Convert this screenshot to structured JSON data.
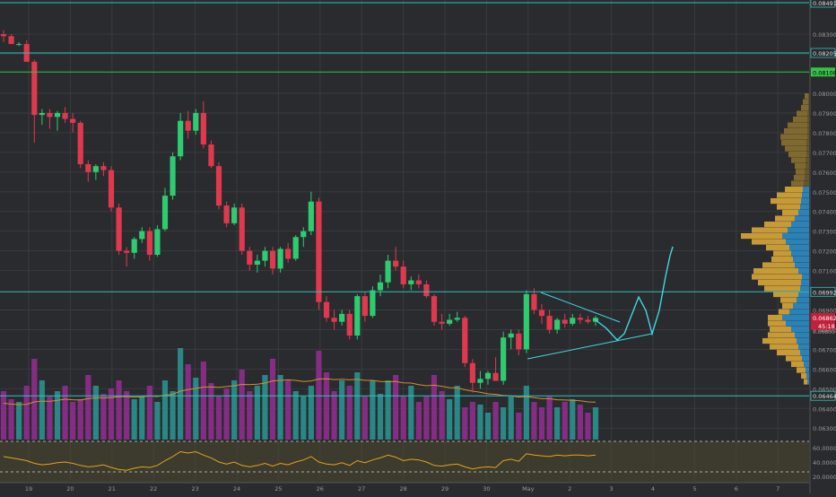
{
  "colors": {
    "background": "#2a2b2e",
    "grid": "#3a3b3f",
    "up": "#2ecc71",
    "down": "#e0394f",
    "line": "#30c0bd",
    "drawing": "#3fd8e8",
    "vol_up": "#2a8c8a",
    "vol_down": "#8a2d8a",
    "vol_ma": "#d4902a",
    "rsi": "#e8a21a",
    "vp_up": "#2b8cc6",
    "vp_down": "#d8a63a",
    "rsi_band": "#4a4830",
    "green_level": "#35c24a",
    "red_level": "#c2203a"
  },
  "chart_data": {
    "type": "candlestick",
    "price_axis": {
      "ticks": [
        "0.08300",
        "0.08200",
        "0.08000",
        "0.07900",
        "0.07800",
        "0.07700",
        "0.07600",
        "0.07500",
        "0.07400",
        "0.07300",
        "0.07200",
        "0.07100",
        "0.06900",
        "0.06800",
        "0.06700",
        "0.06600",
        "0.06500",
        "0.06400",
        "0.06300"
      ],
      "ylim": [
        0.0626,
        0.0846
      ]
    },
    "date_axis": {
      "ticks": [
        "19",
        "20",
        "21",
        "22",
        "23",
        "24",
        "25",
        "26",
        "27",
        "28",
        "29",
        "30",
        "May",
        "2",
        "3",
        "4",
        "5",
        "6",
        "7"
      ]
    },
    "horizontal_levels": [
      {
        "label": "0.08491",
        "price": 0.0846,
        "kind": "cyan"
      },
      {
        "label": "0.08205",
        "price": 0.08205,
        "kind": "cyan"
      },
      {
        "label": "0.08108",
        "price": 0.08108,
        "kind": "green"
      },
      {
        "label": "0.06992",
        "price": 0.06992,
        "kind": "cyan"
      },
      {
        "label": "0.06464",
        "price": 0.06464,
        "kind": "cyan"
      }
    ],
    "current_price": {
      "label": "0.06862",
      "countdown": "45:18",
      "price": 0.06862,
      "below_label": "0.06800"
    },
    "candles_start_x": 4,
    "candles_end_x": 664,
    "candles": [
      [
        0.083,
        0.0832,
        0.0826,
        0.0829
      ],
      [
        0.0829,
        0.083,
        0.0825,
        0.0825
      ],
      [
        0.0825,
        0.0826,
        0.0824,
        0.0825
      ],
      [
        0.0825,
        0.0827,
        0.0816,
        0.0816
      ],
      [
        0.0816,
        0.0817,
        0.0775,
        0.0789
      ],
      [
        0.0789,
        0.0792,
        0.0784,
        0.079
      ],
      [
        0.079,
        0.0792,
        0.0782,
        0.0788
      ],
      [
        0.0788,
        0.0791,
        0.0781,
        0.079
      ],
      [
        0.079,
        0.0793,
        0.0785,
        0.0787
      ],
      [
        0.0787,
        0.079,
        0.078,
        0.0785
      ],
      [
        0.0785,
        0.0786,
        0.0762,
        0.0764
      ],
      [
        0.0764,
        0.0766,
        0.0755,
        0.076
      ],
      [
        0.076,
        0.0764,
        0.0756,
        0.0763
      ],
      [
        0.0763,
        0.0765,
        0.0758,
        0.0761
      ],
      [
        0.0761,
        0.0763,
        0.074,
        0.0742
      ],
      [
        0.0742,
        0.0744,
        0.0718,
        0.072
      ],
      [
        0.072,
        0.0722,
        0.0712,
        0.0719
      ],
      [
        0.0719,
        0.0727,
        0.0716,
        0.0726
      ],
      [
        0.0726,
        0.0732,
        0.0724,
        0.073
      ],
      [
        0.073,
        0.0732,
        0.0715,
        0.0718
      ],
      [
        0.0718,
        0.0733,
        0.0717,
        0.0731
      ],
      [
        0.0731,
        0.0752,
        0.073,
        0.0748
      ],
      [
        0.0748,
        0.077,
        0.0746,
        0.0768
      ],
      [
        0.0768,
        0.079,
        0.0766,
        0.0786
      ],
      [
        0.0786,
        0.0791,
        0.0777,
        0.0781
      ],
      [
        0.0781,
        0.0792,
        0.0779,
        0.079
      ],
      [
        0.079,
        0.0796,
        0.0772,
        0.0774
      ],
      [
        0.0774,
        0.0776,
        0.0762,
        0.0763
      ],
      [
        0.0763,
        0.0765,
        0.0741,
        0.0743
      ],
      [
        0.0743,
        0.0745,
        0.0732,
        0.0734
      ],
      [
        0.0734,
        0.0744,
        0.0733,
        0.0742
      ],
      [
        0.0742,
        0.0744,
        0.0718,
        0.072
      ],
      [
        0.072,
        0.0722,
        0.071,
        0.0713
      ],
      [
        0.0713,
        0.0718,
        0.0709,
        0.0715
      ],
      [
        0.0715,
        0.0722,
        0.0712,
        0.072
      ],
      [
        0.072,
        0.0722,
        0.0708,
        0.0711
      ],
      [
        0.0711,
        0.0722,
        0.0709,
        0.0721
      ],
      [
        0.0721,
        0.0724,
        0.0714,
        0.0716
      ],
      [
        0.0716,
        0.0728,
        0.0715,
        0.0727
      ],
      [
        0.0727,
        0.0732,
        0.0722,
        0.073
      ],
      [
        0.073,
        0.075,
        0.0728,
        0.0745
      ],
      [
        0.0745,
        0.0747,
        0.069,
        0.0694
      ],
      [
        0.0694,
        0.0697,
        0.0684,
        0.0686
      ],
      [
        0.0686,
        0.069,
        0.068,
        0.0684
      ],
      [
        0.0684,
        0.069,
        0.0682,
        0.0688
      ],
      [
        0.0688,
        0.069,
        0.0675,
        0.0677
      ],
      [
        0.0677,
        0.0698,
        0.0675,
        0.0697
      ],
      [
        0.0697,
        0.0699,
        0.0684,
        0.0687
      ],
      [
        0.0687,
        0.0702,
        0.0686,
        0.07
      ],
      [
        0.07,
        0.0708,
        0.0697,
        0.0704
      ],
      [
        0.0704,
        0.0718,
        0.0701,
        0.0715
      ],
      [
        0.0715,
        0.0722,
        0.071,
        0.0712
      ],
      [
        0.0712,
        0.0715,
        0.0701,
        0.0703
      ],
      [
        0.0703,
        0.0707,
        0.07,
        0.0705
      ],
      [
        0.0705,
        0.0708,
        0.0701,
        0.0703
      ],
      [
        0.0703,
        0.0705,
        0.0696,
        0.0697
      ],
      [
        0.0697,
        0.0698,
        0.0682,
        0.0684
      ],
      [
        0.0684,
        0.0688,
        0.068,
        0.0683
      ],
      [
        0.0683,
        0.0688,
        0.0682,
        0.0685
      ],
      [
        0.0685,
        0.0689,
        0.0684,
        0.0686
      ],
      [
        0.0686,
        0.0687,
        0.0661,
        0.0663
      ],
      [
        0.0663,
        0.0665,
        0.0648,
        0.0653
      ],
      [
        0.0653,
        0.0659,
        0.065,
        0.0655
      ],
      [
        0.0655,
        0.0659,
        0.0652,
        0.0658
      ],
      [
        0.0658,
        0.0666,
        0.0655,
        0.0654
      ],
      [
        0.0654,
        0.0679,
        0.0652,
        0.0676
      ],
      [
        0.0676,
        0.068,
        0.067,
        0.0678
      ],
      [
        0.0678,
        0.068,
        0.0667,
        0.067
      ],
      [
        0.067,
        0.07,
        0.0668,
        0.0698
      ],
      [
        0.0698,
        0.0701,
        0.0688,
        0.069
      ],
      [
        0.069,
        0.0693,
        0.0683,
        0.0687
      ],
      [
        0.0687,
        0.069,
        0.0678,
        0.068
      ],
      [
        0.068,
        0.0686,
        0.0678,
        0.0685
      ],
      [
        0.0685,
        0.0688,
        0.0681,
        0.0683
      ],
      [
        0.0683,
        0.0688,
        0.0682,
        0.0686
      ],
      [
        0.0686,
        0.0688,
        0.0683,
        0.0685
      ],
      [
        0.0685,
        0.0687,
        0.0683,
        0.0684
      ],
      [
        0.0684,
        0.0687,
        0.0682,
        0.0686
      ]
    ],
    "volume": [
      18,
      15,
      14,
      20,
      30,
      22,
      16,
      18,
      20,
      14,
      15,
      24,
      20,
      17,
      19,
      22,
      18,
      15,
      16,
      20,
      14,
      22,
      18,
      34,
      28,
      23,
      29,
      21,
      16,
      19,
      22,
      26,
      18,
      20,
      24,
      30,
      24,
      22,
      18,
      16,
      20,
      33,
      25,
      18,
      22,
      20,
      25,
      16,
      22,
      17,
      22,
      24,
      16,
      20,
      14,
      16,
      24,
      18,
      15,
      20,
      12,
      14,
      13,
      10,
      14,
      12,
      16,
      10,
      20,
      14,
      12,
      16,
      12,
      14,
      15,
      13,
      10,
      12
    ],
    "volume_ma": [
      13.5,
      13.2,
      13.0,
      13.1,
      14.0,
      14.3,
      14.2,
      14.6,
      15.0,
      14.8,
      14.7,
      15.2,
      15.5,
      15.4,
      15.6,
      15.9,
      16.0,
      15.8,
      15.9,
      16.2,
      16.0,
      16.5,
      16.8,
      18.0,
      18.6,
      19.0,
      19.5,
      19.6,
      19.4,
      19.7,
      20.0,
      20.5,
      20.4,
      20.6,
      21.0,
      21.8,
      22.0,
      22.2,
      22.0,
      21.6,
      21.8,
      22.5,
      22.6,
      22.3,
      22.4,
      22.2,
      22.4,
      22.0,
      22.0,
      21.6,
      21.5,
      21.6,
      21.1,
      21.0,
      20.4,
      20.0,
      20.2,
      19.8,
      19.3,
      19.2,
      18.5,
      18.0,
      17.6,
      17.0,
      16.8,
      16.4,
      16.3,
      15.8,
      16.0,
      15.6,
      15.2,
      15.2,
      14.8,
      14.7,
      14.6,
      14.4,
      14.0,
      13.9
    ],
    "rsi": {
      "ticks": [
        "60.0000",
        "40.0000",
        "20.0000"
      ],
      "bands": [
        70,
        30
      ],
      "values": [
        48,
        46,
        44,
        42,
        38,
        36,
        37,
        39,
        40,
        38,
        35,
        33,
        34,
        36,
        32,
        29,
        28,
        31,
        33,
        32,
        35,
        42,
        48,
        55,
        53,
        55,
        50,
        46,
        40,
        37,
        40,
        35,
        33,
        35,
        38,
        34,
        38,
        36,
        40,
        43,
        48,
        40,
        37,
        36,
        39,
        35,
        42,
        39,
        43,
        46,
        50,
        47,
        42,
        44,
        43,
        40,
        35,
        34,
        36,
        37,
        33,
        30,
        32,
        33,
        32,
        42,
        44,
        41,
        52,
        50,
        49,
        48,
        50,
        49,
        50,
        50,
        49,
        50
      ]
    },
    "volume_profile": {
      "price_range": [
        0.0652,
        0.08
      ],
      "up": [
        2,
        3,
        4,
        6,
        8,
        10,
        12,
        14,
        16,
        20,
        26,
        30,
        22,
        18,
        14,
        12,
        10,
        9,
        8,
        12,
        16,
        18,
        20,
        22,
        26,
        30,
        24,
        20,
        16,
        12,
        10,
        9,
        8,
        7,
        6,
        5,
        5,
        4,
        4,
        3,
        3,
        3,
        2,
        2,
        2,
        2,
        2,
        1,
        1,
        1
      ],
      "down": [
        4,
        6,
        10,
        14,
        18,
        26,
        32,
        38,
        30,
        24,
        20,
        16,
        12,
        12,
        18,
        28,
        40,
        48,
        56,
        50,
        36,
        24,
        20,
        26,
        38,
        46,
        40,
        30,
        22,
        18,
        26,
        34,
        28,
        20,
        14,
        12,
        10,
        12,
        16,
        20,
        24,
        28,
        30,
        26,
        22,
        16,
        12,
        8,
        6,
        4
      ]
    },
    "drawings": {
      "triangle_upper": [
        [
          603,
          326
        ],
        [
          691,
          359
        ]
      ],
      "triangle_lower": [
        [
          588,
          400
        ],
        [
          727,
          372
        ]
      ],
      "path": [
        [
          663,
          356
        ],
        [
          676,
          366
        ],
        [
          688,
          379
        ],
        [
          696,
          372
        ],
        [
          705,
          349
        ],
        [
          712,
          331
        ],
        [
          720,
          346
        ],
        [
          727,
          372
        ],
        [
          735,
          346
        ],
        [
          742,
          308
        ],
        [
          747,
          285
        ],
        [
          750,
          275
        ]
      ]
    }
  }
}
